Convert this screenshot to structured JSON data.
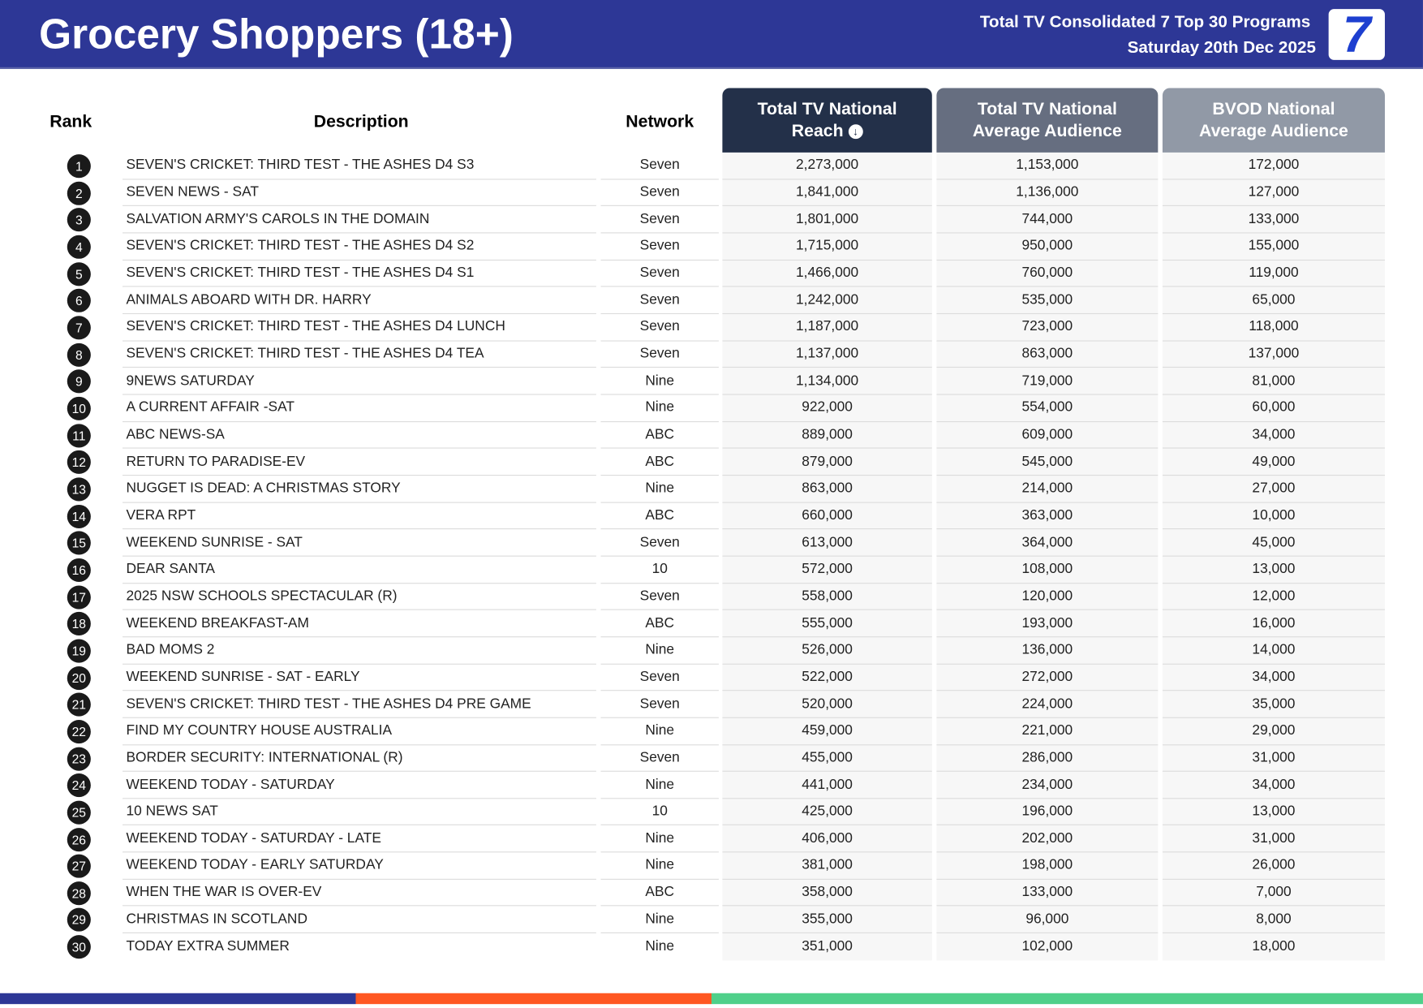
{
  "header": {
    "title": "Grocery Shoppers (18+)",
    "subtitle": "Total TV Consolidated 7 Top 30 Programs",
    "date": "Saturday 20th Dec 2025",
    "logo": "7"
  },
  "colors": {
    "header_bg": "#2d3796",
    "col1": "#233049",
    "col2": "#666e80",
    "col3": "#9199a6",
    "stripe_blue": "#2d3796",
    "stripe_orange": "#ff5722",
    "stripe_green": "#4fd08a"
  },
  "table": {
    "headers": {
      "rank": "Rank",
      "description": "Description",
      "network": "Network",
      "reach_line1": "Total TV National",
      "reach_line2": "Reach",
      "avg_line1": "Total TV National",
      "avg_line2": "Average Audience",
      "bvod_line1": "BVOD National",
      "bvod_line2": "Average Audience"
    },
    "sort_icon": "arrow-down-circle-icon",
    "rows": [
      {
        "rank": "1",
        "description": "SEVEN'S CRICKET: THIRD TEST - THE ASHES D4 S3",
        "network": "Seven",
        "reach": "2,273,000",
        "avg": "1,153,000",
        "bvod": "172,000"
      },
      {
        "rank": "2",
        "description": "SEVEN NEWS - SAT",
        "network": "Seven",
        "reach": "1,841,000",
        "avg": "1,136,000",
        "bvod": "127,000"
      },
      {
        "rank": "3",
        "description": "SALVATION ARMY'S CAROLS IN THE DOMAIN",
        "network": "Seven",
        "reach": "1,801,000",
        "avg": "744,000",
        "bvod": "133,000"
      },
      {
        "rank": "4",
        "description": "SEVEN'S CRICKET: THIRD TEST - THE ASHES D4 S2",
        "network": "Seven",
        "reach": "1,715,000",
        "avg": "950,000",
        "bvod": "155,000"
      },
      {
        "rank": "5",
        "description": "SEVEN'S CRICKET: THIRD TEST - THE ASHES D4 S1",
        "network": "Seven",
        "reach": "1,466,000",
        "avg": "760,000",
        "bvod": "119,000"
      },
      {
        "rank": "6",
        "description": "ANIMALS ABOARD WITH DR. HARRY",
        "network": "Seven",
        "reach": "1,242,000",
        "avg": "535,000",
        "bvod": "65,000"
      },
      {
        "rank": "7",
        "description": "SEVEN'S CRICKET: THIRD TEST - THE ASHES D4 LUNCH",
        "network": "Seven",
        "reach": "1,187,000",
        "avg": "723,000",
        "bvod": "118,000"
      },
      {
        "rank": "8",
        "description": "SEVEN'S CRICKET: THIRD TEST - THE ASHES D4 TEA",
        "network": "Seven",
        "reach": "1,137,000",
        "avg": "863,000",
        "bvod": "137,000"
      },
      {
        "rank": "9",
        "description": "9NEWS SATURDAY",
        "network": "Nine",
        "reach": "1,134,000",
        "avg": "719,000",
        "bvod": "81,000"
      },
      {
        "rank": "10",
        "description": "A CURRENT AFFAIR -SAT",
        "network": "Nine",
        "reach": "922,000",
        "avg": "554,000",
        "bvod": "60,000"
      },
      {
        "rank": "11",
        "description": "ABC NEWS-SA",
        "network": "ABC",
        "reach": "889,000",
        "avg": "609,000",
        "bvod": "34,000"
      },
      {
        "rank": "12",
        "description": "RETURN TO PARADISE-EV",
        "network": "ABC",
        "reach": "879,000",
        "avg": "545,000",
        "bvod": "49,000"
      },
      {
        "rank": "13",
        "description": "NUGGET IS DEAD: A CHRISTMAS STORY",
        "network": "Nine",
        "reach": "863,000",
        "avg": "214,000",
        "bvod": "27,000"
      },
      {
        "rank": "14",
        "description": "VERA RPT",
        "network": "ABC",
        "reach": "660,000",
        "avg": "363,000",
        "bvod": "10,000"
      },
      {
        "rank": "15",
        "description": "WEEKEND SUNRISE - SAT",
        "network": "Seven",
        "reach": "613,000",
        "avg": "364,000",
        "bvod": "45,000"
      },
      {
        "rank": "16",
        "description": "DEAR SANTA",
        "network": "10",
        "reach": "572,000",
        "avg": "108,000",
        "bvod": "13,000"
      },
      {
        "rank": "17",
        "description": "2025 NSW SCHOOLS SPECTACULAR (R)",
        "network": "Seven",
        "reach": "558,000",
        "avg": "120,000",
        "bvod": "12,000"
      },
      {
        "rank": "18",
        "description": "WEEKEND BREAKFAST-AM",
        "network": "ABC",
        "reach": "555,000",
        "avg": "193,000",
        "bvod": "16,000"
      },
      {
        "rank": "19",
        "description": "BAD MOMS 2",
        "network": "Nine",
        "reach": "526,000",
        "avg": "136,000",
        "bvod": "14,000"
      },
      {
        "rank": "20",
        "description": "WEEKEND SUNRISE - SAT - EARLY",
        "network": "Seven",
        "reach": "522,000",
        "avg": "272,000",
        "bvod": "34,000"
      },
      {
        "rank": "21",
        "description": "SEVEN'S CRICKET: THIRD TEST - THE ASHES D4 PRE GAME",
        "network": "Seven",
        "reach": "520,000",
        "avg": "224,000",
        "bvod": "35,000"
      },
      {
        "rank": "22",
        "description": "FIND MY COUNTRY HOUSE AUSTRALIA",
        "network": "Nine",
        "reach": "459,000",
        "avg": "221,000",
        "bvod": "29,000"
      },
      {
        "rank": "23",
        "description": "BORDER SECURITY: INTERNATIONAL (R)",
        "network": "Seven",
        "reach": "455,000",
        "avg": "286,000",
        "bvod": "31,000"
      },
      {
        "rank": "24",
        "description": "WEEKEND TODAY - SATURDAY",
        "network": "Nine",
        "reach": "441,000",
        "avg": "234,000",
        "bvod": "34,000"
      },
      {
        "rank": "25",
        "description": "10 NEWS SAT",
        "network": "10",
        "reach": "425,000",
        "avg": "196,000",
        "bvod": "13,000"
      },
      {
        "rank": "26",
        "description": "WEEKEND TODAY - SATURDAY - LATE",
        "network": "Nine",
        "reach": "406,000",
        "avg": "202,000",
        "bvod": "31,000"
      },
      {
        "rank": "27",
        "description": "WEEKEND TODAY - EARLY SATURDAY",
        "network": "Nine",
        "reach": "381,000",
        "avg": "198,000",
        "bvod": "26,000"
      },
      {
        "rank": "28",
        "description": "WHEN THE WAR IS OVER-EV",
        "network": "ABC",
        "reach": "358,000",
        "avg": "133,000",
        "bvod": "7,000"
      },
      {
        "rank": "29",
        "description": "CHRISTMAS IN SCOTLAND",
        "network": "Nine",
        "reach": "355,000",
        "avg": "96,000",
        "bvod": "8,000"
      },
      {
        "rank": "30",
        "description": "TODAY EXTRA SUMMER",
        "network": "Nine",
        "reach": "351,000",
        "avg": "102,000",
        "bvod": "18,000"
      }
    ]
  }
}
